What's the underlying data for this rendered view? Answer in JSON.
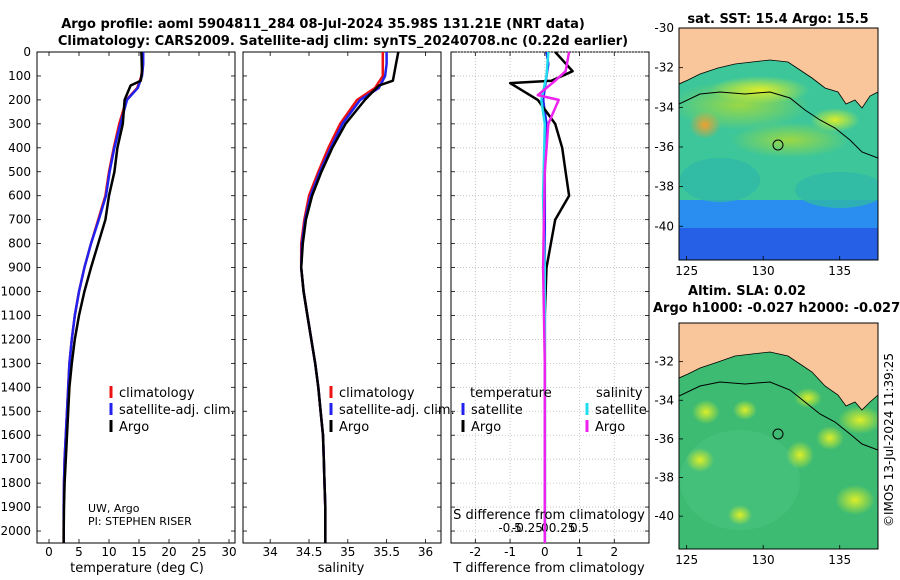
{
  "header": {
    "title_line1": "Argo profile: aoml 5904811_284 08-Jul-2024 35.98S 131.21E (NRT data)",
    "title_line2": "Climatology: CARS2009. Satellite-adj clim: synTS_20240708.nc (0.22d earlier)"
  },
  "credit": {
    "line1": "UW, Argo",
    "line2": "PI: STEPHEN RISER"
  },
  "footer": {
    "stamp": "©IMOS 13-Jul-2024 11:39:25"
  },
  "colors": {
    "climatology": "#ee1111",
    "satellite": "#2222ee",
    "argo": "#000000",
    "sat_salinity": "#22ddee",
    "argo_salinity": "#ee22ee",
    "land": "#f9c59a"
  },
  "legend": {
    "climatology": "climatology",
    "satellite": "satellite-adj. clim.",
    "argo": "Argo",
    "diff_temp_header": "temperature",
    "diff_sal_header": "salinity",
    "diff_satellite": "satellite",
    "diff_argo": "Argo"
  },
  "chart_data": [
    {
      "type": "line",
      "xlabel": "temperature (deg C)",
      "ylabel": "",
      "xlim": [
        -2,
        31
      ],
      "ylim": [
        2050,
        0
      ],
      "xticks": [
        0,
        5,
        10,
        15,
        20,
        25,
        30
      ],
      "yticks": [
        0,
        100,
        200,
        300,
        400,
        500,
        600,
        700,
        800,
        900,
        1000,
        1100,
        1200,
        1300,
        1400,
        1500,
        1600,
        1700,
        1800,
        1900,
        2000
      ],
      "series": [
        {
          "name": "climatology",
          "color": "#ee1111",
          "x": [
            15.6,
            15.6,
            15.4,
            14.7,
            12.9,
            11.7,
            10.8,
            10.0,
            9.4,
            8.2,
            7.0,
            5.9,
            5.0,
            4.3,
            3.8,
            3.4,
            3.2,
            3.0,
            2.8,
            2.6,
            2.5,
            2.45,
            2.45
          ],
          "y": [
            0,
            50,
            100,
            150,
            200,
            300,
            400,
            500,
            600,
            700,
            800,
            900,
            1000,
            1100,
            1200,
            1300,
            1400,
            1500,
            1600,
            1700,
            1800,
            1900,
            2050
          ]
        },
        {
          "name": "satellite-adj. clim.",
          "color": "#2222ee",
          "x": [
            15.7,
            15.7,
            15.5,
            14.8,
            13.0,
            11.9,
            10.9,
            10.1,
            9.5,
            8.3,
            7.0,
            5.9,
            5.0,
            4.3,
            3.8,
            3.4,
            3.2,
            3.0,
            2.8,
            2.6,
            2.5,
            2.45,
            2.45
          ],
          "y": [
            0,
            50,
            100,
            150,
            200,
            300,
            400,
            500,
            600,
            700,
            800,
            900,
            1000,
            1100,
            1200,
            1300,
            1400,
            1500,
            1600,
            1700,
            1800,
            1900,
            2050
          ]
        },
        {
          "name": "Argo",
          "color": "#000000",
          "x": [
            15.4,
            15.5,
            15.3,
            13.6,
            12.6,
            12.3,
            11.4,
            10.9,
            10.0,
            9.4,
            8.2,
            7.0,
            5.9,
            5.0,
            4.3,
            3.8,
            3.4,
            3.2,
            3.0,
            2.8,
            2.6,
            2.5,
            2.45,
            2.45
          ],
          "y": [
            0,
            80,
            120,
            140,
            200,
            300,
            400,
            500,
            600,
            700,
            800,
            900,
            1000,
            1100,
            1200,
            1300,
            1400,
            1500,
            1600,
            1700,
            1800,
            1900,
            2000,
            2050
          ]
        }
      ]
    },
    {
      "type": "line",
      "xlabel": "salinity",
      "xlim": [
        33.65,
        36.2
      ],
      "ylim": [
        2050,
        0
      ],
      "xticks": [
        34,
        34.5,
        35,
        35.5,
        36
      ],
      "series": [
        {
          "name": "climatology",
          "color": "#ee1111",
          "x": [
            35.45,
            35.45,
            35.45,
            35.35,
            35.12,
            34.9,
            34.75,
            34.62,
            34.5,
            34.44,
            34.4,
            34.4,
            34.43,
            34.48,
            34.53,
            34.58,
            34.62,
            34.65,
            34.68,
            34.69,
            34.7,
            34.71,
            34.71
          ],
          "y": [
            0,
            50,
            100,
            150,
            200,
            300,
            400,
            500,
            600,
            700,
            800,
            900,
            1000,
            1100,
            1200,
            1300,
            1400,
            1500,
            1600,
            1700,
            1800,
            1900,
            2050
          ]
        },
        {
          "name": "satellite-adj. clim.",
          "color": "#2222ee",
          "x": [
            35.5,
            35.5,
            35.48,
            35.4,
            35.16,
            34.93,
            34.78,
            34.64,
            34.52,
            34.45,
            34.41,
            34.4,
            34.43,
            34.48,
            34.53,
            34.58,
            34.62,
            34.65,
            34.68,
            34.69,
            34.7,
            34.71,
            34.71
          ],
          "y": [
            0,
            50,
            100,
            150,
            200,
            300,
            400,
            500,
            600,
            700,
            800,
            900,
            1000,
            1100,
            1200,
            1300,
            1400,
            1500,
            1600,
            1700,
            1800,
            1900,
            2050
          ]
        },
        {
          "name": "Argo",
          "color": "#000000",
          "x": [
            35.65,
            35.62,
            35.58,
            35.4,
            35.22,
            34.97,
            34.8,
            34.66,
            34.54,
            34.46,
            34.42,
            34.4,
            34.43,
            34.48,
            34.53,
            34.58,
            34.62,
            34.65,
            34.68,
            34.69,
            34.7,
            34.71,
            34.71
          ],
          "y": [
            0,
            50,
            120,
            140,
            200,
            300,
            400,
            500,
            600,
            700,
            800,
            900,
            1000,
            1100,
            1200,
            1300,
            1400,
            1500,
            1600,
            1700,
            1800,
            1900,
            2050
          ]
        }
      ]
    },
    {
      "type": "line",
      "xlabel": "T difference from climatology",
      "xlabel_top": "S difference from climatology",
      "xlim": [
        -2.7,
        3.0
      ],
      "ylim": [
        2050,
        0
      ],
      "xticks": [
        -2,
        -1,
        0,
        1,
        2
      ],
      "sal_tick_labels": [
        "-0.5",
        "-0.25",
        "0",
        "0.25",
        "0.5"
      ],
      "series": [
        {
          "name": "temperature satellite",
          "color": "#2222ee",
          "x": [
            0.05,
            0.1,
            -0.05,
            0.05,
            0.0,
            0.0,
            0.0,
            0.0,
            0.0,
            0.0,
            0.0
          ],
          "y": [
            0,
            50,
            200,
            300,
            500,
            700,
            900,
            1100,
            1400,
            1700,
            2050
          ]
        },
        {
          "name": "temperature Argo",
          "color": "#000000",
          "x": [
            0.3,
            0.8,
            0.2,
            -1.0,
            -0.2,
            0.3,
            0.5,
            0.6,
            0.7,
            0.3,
            0.05,
            0.0,
            0.0
          ],
          "y": [
            0,
            80,
            120,
            130,
            200,
            300,
            400,
            500,
            600,
            700,
            900,
            1100,
            2050
          ]
        },
        {
          "name": "salinity satellite",
          "color": "#22ddee",
          "x": [
            0.1,
            0.05,
            -0.1,
            0.0,
            -0.05,
            0.0,
            0.0,
            0.0,
            0.0
          ],
          "y": [
            0,
            100,
            200,
            300,
            600,
            900,
            1200,
            1500,
            2050
          ]
        },
        {
          "name": "salinity Argo",
          "color": "#ee22ee",
          "x": [
            0.7,
            0.6,
            0.3,
            -0.2,
            0.4,
            0.1,
            0.0,
            -0.05,
            0.0,
            0.0
          ],
          "y": [
            0,
            80,
            120,
            180,
            200,
            300,
            500,
            900,
            1300,
            2050
          ]
        }
      ]
    }
  ],
  "maps": [
    {
      "name": "sst-map",
      "title": "sat. SST: 15.4 Argo: 15.5",
      "xticks": [
        125,
        130,
        135
      ],
      "yticks": [
        -30,
        -32,
        -34,
        -36,
        -38,
        -40
      ],
      "lon_range": [
        124.5,
        137.5
      ],
      "lat_range": [
        -41.7,
        -30
      ],
      "argo_lon": 131.21,
      "argo_lat": -35.98
    },
    {
      "name": "sla-map",
      "title1": "Altim. SLA: 0.02",
      "title2": "Argo h1000: -0.027 h2000: -0.027",
      "xticks": [
        125,
        130,
        135
      ],
      "yticks": [
        -32,
        -34,
        -36,
        -38,
        -40
      ],
      "lon_range": [
        124.5,
        137.5
      ],
      "lat_range": [
        -41.7,
        -30
      ],
      "argo_lon": 131.21,
      "argo_lat": -35.98
    }
  ]
}
